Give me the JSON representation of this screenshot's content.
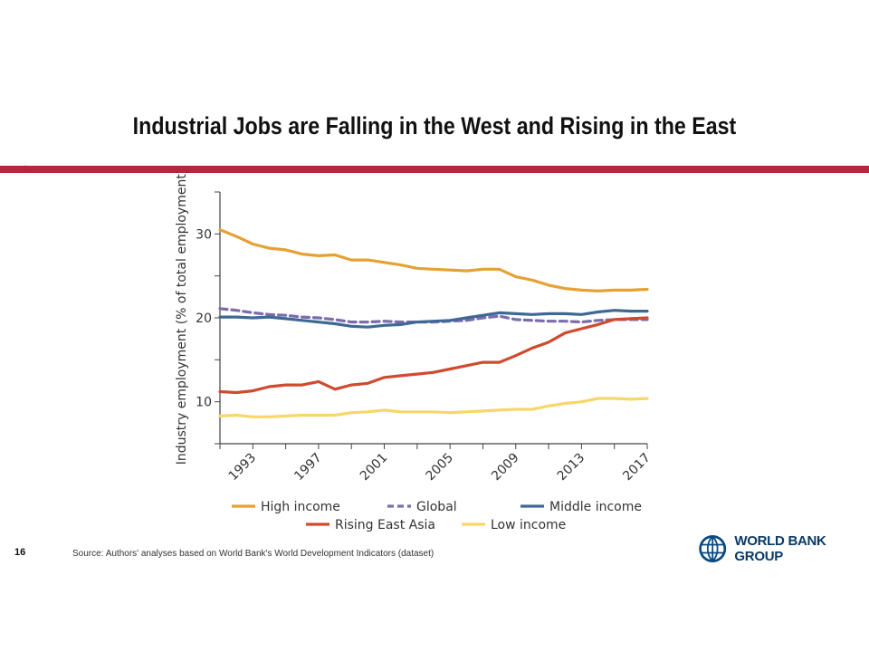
{
  "slide": {
    "title": "Industrial Jobs are Falling in the West and Rising in the East",
    "number": "16",
    "source_note": "Source: Authors' analyses based on World Bank's World Development Indicators (dataset)",
    "logo_text": "WORLD BANK GROUP",
    "colors": {
      "rule": "#b5273a",
      "logo_blue": "#0a4a82",
      "logo_text": "#0a3a66"
    }
  },
  "chart_data": {
    "type": "line",
    "title": "",
    "xlabel": "",
    "ylabel": "Industry employment (% of total employment)",
    "xlim": [
      1991,
      2017
    ],
    "ylim": [
      5,
      35
    ],
    "x_ticks": [
      1993,
      1997,
      2001,
      2005,
      2009,
      2013,
      2017
    ],
    "y_ticks": [
      10,
      20,
      30
    ],
    "grid": false,
    "legend_position": "bottom",
    "x": [
      1991,
      1992,
      1993,
      1994,
      1995,
      1996,
      1997,
      1998,
      1999,
      2000,
      2001,
      2002,
      2003,
      2004,
      2005,
      2006,
      2007,
      2008,
      2009,
      2010,
      2011,
      2012,
      2013,
      2014,
      2015,
      2016,
      2017
    ],
    "series": [
      {
        "name": "High income",
        "color": "#e5a133",
        "dash": false,
        "values": [
          30.5,
          29.7,
          28.8,
          28.3,
          28.1,
          27.6,
          27.4,
          27.5,
          26.9,
          26.9,
          26.6,
          26.3,
          25.9,
          25.8,
          25.7,
          25.6,
          25.8,
          25.8,
          24.9,
          24.5,
          23.9,
          23.5,
          23.3,
          23.2,
          23.3,
          23.3,
          23.4
        ]
      },
      {
        "name": "Global",
        "color": "#7c6cac",
        "dash": true,
        "values": [
          21.1,
          20.9,
          20.6,
          20.4,
          20.3,
          20.1,
          20.0,
          19.8,
          19.5,
          19.5,
          19.6,
          19.5,
          19.5,
          19.5,
          19.6,
          19.7,
          20.0,
          20.2,
          19.8,
          19.7,
          19.6,
          19.6,
          19.5,
          19.7,
          19.8,
          19.8,
          19.8
        ]
      },
      {
        "name": "Middle income",
        "color": "#3d6994",
        "dash": false,
        "values": [
          20.1,
          20.1,
          20.0,
          20.1,
          19.9,
          19.7,
          19.5,
          19.3,
          19.0,
          18.9,
          19.1,
          19.2,
          19.5,
          19.6,
          19.7,
          20.0,
          20.3,
          20.6,
          20.5,
          20.4,
          20.5,
          20.5,
          20.4,
          20.7,
          20.9,
          20.8,
          20.8
        ]
      },
      {
        "name": "Rising East Asia",
        "color": "#cf4b2f",
        "dash": false,
        "values": [
          11.2,
          11.1,
          11.3,
          11.8,
          12.0,
          12.0,
          12.4,
          11.5,
          12.0,
          12.2,
          12.9,
          13.1,
          13.3,
          13.5,
          13.9,
          14.3,
          14.7,
          14.7,
          15.5,
          16.4,
          17.1,
          18.2,
          18.7,
          19.2,
          19.8,
          19.9,
          20.0
        ]
      },
      {
        "name": "Low income",
        "color": "#f7d66a",
        "dash": false,
        "values": [
          8.3,
          8.4,
          8.2,
          8.2,
          8.3,
          8.4,
          8.4,
          8.4,
          8.7,
          8.8,
          9.0,
          8.8,
          8.8,
          8.8,
          8.7,
          8.8,
          8.9,
          9.0,
          9.1,
          9.1,
          9.5,
          9.8,
          10.0,
          10.4,
          10.4,
          10.3,
          10.4
        ]
      }
    ]
  }
}
